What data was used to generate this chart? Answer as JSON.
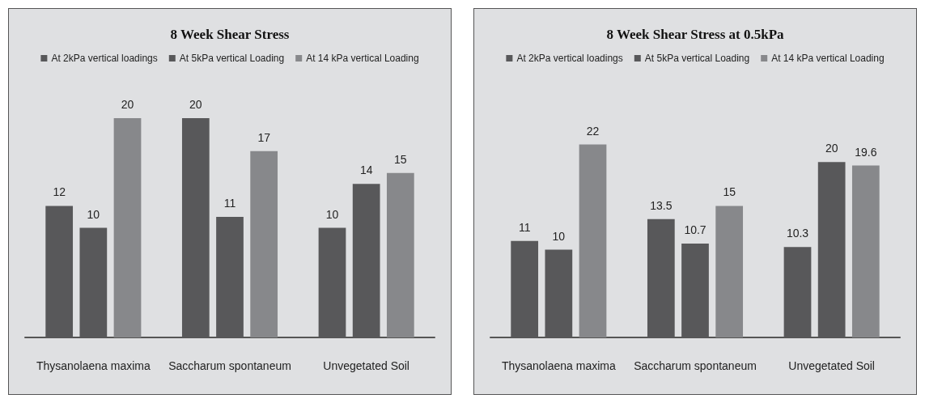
{
  "chart_data": [
    {
      "type": "bar",
      "title": "8 Week Shear Stress",
      "categories": [
        "Thysanolaena maxima",
        "Saccharum spontaneum",
        "Unvegetated Soil"
      ],
      "series": [
        {
          "name": "At 2kPa vertical loadings",
          "color": "#58585a",
          "values": [
            12,
            20,
            10
          ]
        },
        {
          "name": "At 5kPa vertical Loading",
          "color": "#58585a",
          "values": [
            10,
            11,
            14
          ]
        },
        {
          "name": "At 14 kPa vertical Loading",
          "color": "#87888b",
          "values": [
            20,
            17,
            15
          ]
        }
      ],
      "data_labels": true,
      "legend": "top"
    },
    {
      "type": "bar",
      "title": "8 Week Shear Stress at 0.5kPa",
      "categories": [
        "Thysanolaena maxima",
        "Saccharum spontaneum",
        "Unvegetated Soil"
      ],
      "series": [
        {
          "name": "At 2kPa vertical loadings",
          "color": "#58585a",
          "values": [
            11,
            13.5,
            10.3
          ]
        },
        {
          "name": "At 5kPa vertical Loading",
          "color": "#58585a",
          "values": [
            10,
            10.7,
            20
          ]
        },
        {
          "name": "At 14 kPa vertical Loading",
          "color": "#87888b",
          "values": [
            22,
            15,
            19.6
          ]
        }
      ],
      "data_labels": true,
      "legend": "top"
    }
  ]
}
